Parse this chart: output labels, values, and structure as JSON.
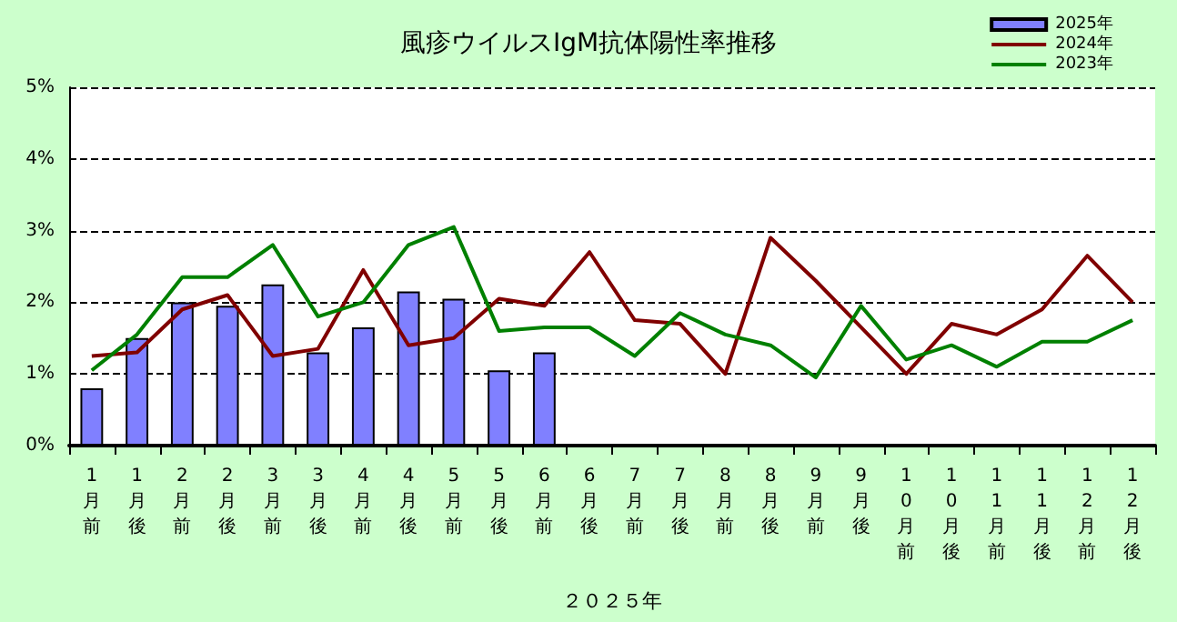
{
  "chart_data": {
    "type": "bar",
    "title": "風疹ウイルスIgM抗体陽性率推移",
    "xlabel": "２０２５年",
    "categories": [
      "1月前",
      "1月後",
      "2月前",
      "2月後",
      "3月前",
      "3月後",
      "4月前",
      "4月後",
      "5月前",
      "5月後",
      "6月前",
      "6月後",
      "7月前",
      "7月後",
      "8月前",
      "8月後",
      "9月前",
      "9月後",
      "10月前",
      "10月後",
      "11月前",
      "11月後",
      "12月前",
      "12月後"
    ],
    "series": [
      {
        "name": "2025年",
        "color": "#8080ff",
        "values": [
          0.8,
          1.5,
          2.0,
          1.95,
          2.25,
          1.3,
          1.65,
          2.15,
          2.05,
          1.05,
          1.3,
          null,
          null,
          null,
          null,
          null,
          null,
          null,
          null,
          null,
          null,
          null,
          null,
          null
        ]
      },
      {
        "name": "2024年",
        "type": "line",
        "color": "#800000",
        "values": [
          1.25,
          1.3,
          1.9,
          2.1,
          1.25,
          1.35,
          2.45,
          1.4,
          1.5,
          2.05,
          1.95,
          2.7,
          1.75,
          1.7,
          1.0,
          2.9,
          2.3,
          1.65,
          1.0,
          1.7,
          1.55,
          1.9,
          2.65,
          2.0
        ]
      },
      {
        "name": "2023年",
        "type": "line",
        "color": "#008000",
        "values": [
          1.05,
          1.55,
          2.35,
          2.35,
          2.8,
          1.8,
          2.0,
          2.8,
          3.05,
          1.6,
          1.65,
          1.65,
          1.25,
          1.85,
          1.55,
          1.4,
          0.95,
          1.95,
          1.2,
          1.4,
          1.1,
          1.45,
          1.45,
          1.75
        ]
      }
    ],
    "ylim": [
      0,
      5
    ],
    "yticks": [
      {
        "value": 0,
        "label": "0%"
      },
      {
        "value": 1,
        "label": "1%"
      },
      {
        "value": 2,
        "label": "2%"
      },
      {
        "value": 3,
        "label": "3%"
      },
      {
        "value": 4,
        "label": "4%"
      },
      {
        "value": 5,
        "label": "5%"
      }
    ],
    "grid": "y",
    "legend": "top right",
    "marker": "none"
  }
}
